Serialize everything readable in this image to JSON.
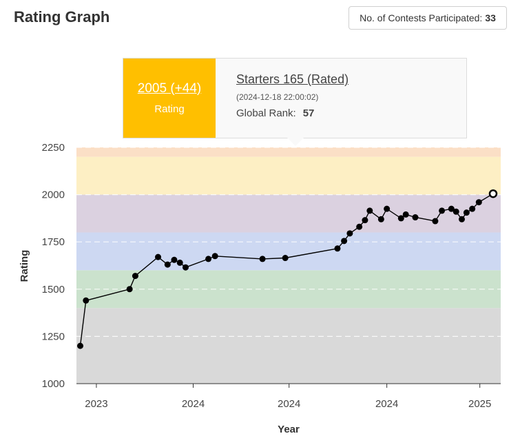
{
  "header": {
    "title": "Rating Graph"
  },
  "badge": {
    "label": "No. of Contests Participated:",
    "count": "33"
  },
  "tooltip": {
    "rating": "2005 (+44)",
    "rating_label": "Rating",
    "contest": "Starters 165 (Rated)",
    "date": "(2024-12-18 22:00:02)",
    "rank_label": "Global Rank:",
    "rank": "57"
  },
  "chart_data": {
    "type": "line",
    "xlabel": "Year",
    "ylabel": "Rating",
    "ylim": [
      1000,
      2250
    ],
    "xlim": [
      0,
      44.7
    ],
    "yticks": [
      1000,
      1250,
      1500,
      1750,
      2000,
      2250
    ],
    "x_ticks": [
      {
        "x": 2.1,
        "label": "2023"
      },
      {
        "x": 12.3,
        "label": "2024"
      },
      {
        "x": 22.4,
        "label": "2024"
      },
      {
        "x": 32.7,
        "label": "2024"
      },
      {
        "x": 42.5,
        "label": "2025"
      }
    ],
    "bands": [
      {
        "from": 1000,
        "to": 1400,
        "color": "#d9d9d9"
      },
      {
        "from": 1400,
        "to": 1600,
        "color": "#cbe2cd"
      },
      {
        "from": 1600,
        "to": 1800,
        "color": "#cdd8f2"
      },
      {
        "from": 1800,
        "to": 2000,
        "color": "#dbd1e0"
      },
      {
        "from": 2000,
        "to": 2200,
        "color": "#fdefc4"
      },
      {
        "from": 2200,
        "to": 2250,
        "color": "#fbdfc6"
      }
    ],
    "line_color": "#000000",
    "series": [
      {
        "x": [
          0.4,
          1.0,
          5.6,
          6.2,
          8.6,
          9.6,
          10.3,
          10.9,
          11.5,
          13.9,
          14.6,
          19.6,
          22.0,
          27.5,
          28.2,
          28.8,
          29.8,
          30.4,
          30.9,
          32.1,
          32.7,
          34.2,
          34.7,
          35.7,
          37.8,
          38.5,
          39.5,
          40.0,
          40.6,
          41.1,
          41.7,
          42.4,
          43.9
        ],
        "y": [
          1200,
          1440,
          1500,
          1570,
          1670,
          1630,
          1655,
          1640,
          1615,
          1660,
          1675,
          1660,
          1665,
          1715,
          1755,
          1795,
          1830,
          1865,
          1915,
          1870,
          1925,
          1875,
          1895,
          1880,
          1860,
          1915,
          1925,
          1910,
          1870,
          1905,
          1925,
          1960,
          2005
        ]
      }
    ]
  }
}
